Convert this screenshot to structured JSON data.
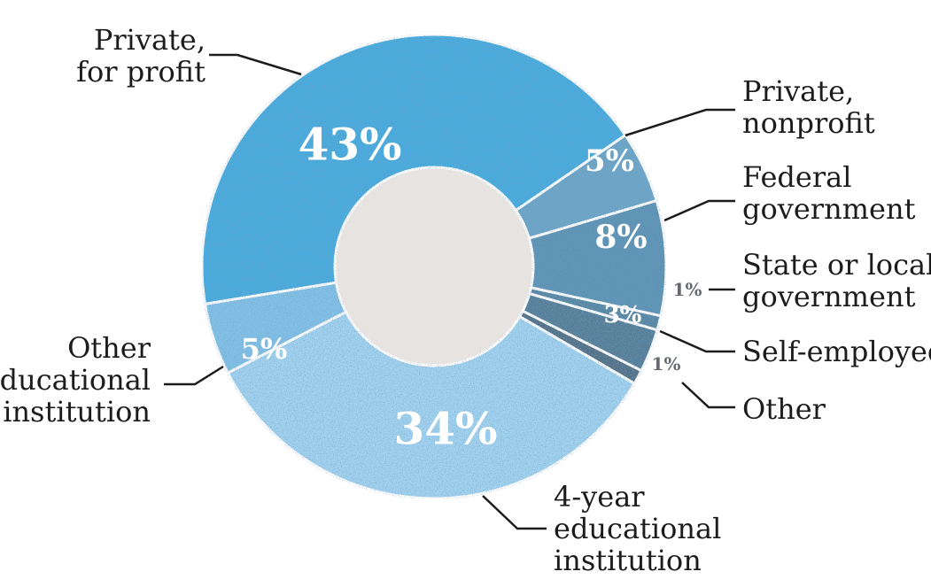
{
  "chart_data": {
    "type": "pie",
    "donut": true,
    "title": "",
    "slices": [
      {
        "label": "Private, for profit",
        "label_lines": [
          "Private,",
          "for profit"
        ],
        "value": 43,
        "value_label": "43%",
        "color": "#49abdd"
      },
      {
        "label": "Private, nonprofit",
        "label_lines": [
          "Private,",
          "nonprofit"
        ],
        "value": 5,
        "value_label": "5%",
        "color": "#6ea5c6"
      },
      {
        "label": "Federal government",
        "label_lines": [
          "Federal",
          "government"
        ],
        "value": 8,
        "value_label": "8%",
        "color": "#5e93b4"
      },
      {
        "label": "State or local government",
        "label_lines": [
          "State or local",
          "government"
        ],
        "value": 1,
        "value_label": "1%",
        "color": "#5a87a3"
      },
      {
        "label": "Self-employed",
        "label_lines": [
          "Self-employed"
        ],
        "value": 3,
        "value_label": "3%",
        "color": "#597e97"
      },
      {
        "label": "Other",
        "label_lines": [
          "Other"
        ],
        "value": 1,
        "value_label": "1%",
        "color": "#556f84"
      },
      {
        "label": "4-year educational institution",
        "label_lines": [
          "4-year",
          "educational",
          "institution"
        ],
        "value": 34,
        "value_label": "34%",
        "color": "#a2d2ee"
      },
      {
        "label": "Other educational institution",
        "label_lines": [
          "Other",
          "educational",
          "institution"
        ],
        "value": 5,
        "value_label": "5%",
        "color": "#83c0e5"
      }
    ],
    "center_color": "#e6e3e0"
  }
}
